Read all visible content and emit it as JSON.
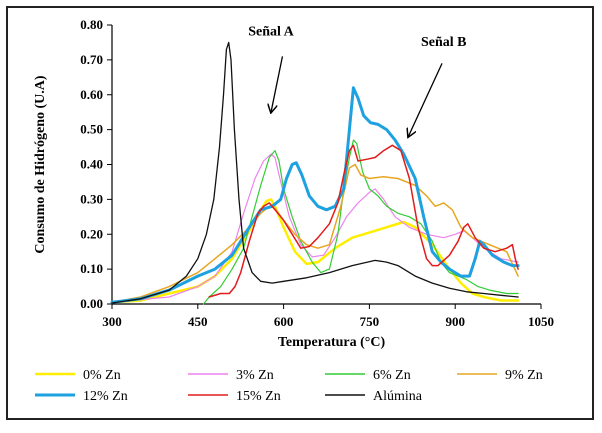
{
  "chart_data": {
    "type": "line",
    "title": "",
    "xlabel": "Temperatura (°C)",
    "ylabel": "Consumo de Hidrógeno (U.A)",
    "xlim": [
      300,
      1050
    ],
    "ylim": [
      0,
      0.8
    ],
    "x_ticks": [
      300,
      450,
      600,
      750,
      900,
      1050
    ],
    "x_tick_labels": [
      "300",
      "450",
      "600",
      "750",
      "900",
      "1050"
    ],
    "y_ticks": [
      0,
      0.1,
      0.2,
      0.3,
      0.4,
      0.5,
      0.6,
      0.7,
      0.8
    ],
    "y_tick_labels": [
      "0.00",
      "0.10",
      "0.20",
      "0.30",
      "0.40",
      "0.50",
      "0.60",
      "0.70",
      "0.80"
    ],
    "annotations": [
      {
        "text": "Señal  A",
        "text_at": [
          578,
          0.77
        ],
        "arrow_from": [
          598,
          0.71
        ],
        "arrow_to": [
          578,
          0.55
        ]
      },
      {
        "text": "Señal B",
        "text_at": [
          880,
          0.74
        ],
        "arrow_from": [
          877,
          0.69
        ],
        "arrow_to": [
          818,
          0.48
        ]
      }
    ],
    "legend_position": "bottom",
    "series": [
      {
        "name": "0% Zn",
        "color": "#ffee00",
        "width": 2.5,
        "points": [
          [
            300,
            0.005
          ],
          [
            350,
            0.01
          ],
          [
            400,
            0.03
          ],
          [
            450,
            0.05
          ],
          [
            480,
            0.08
          ],
          [
            510,
            0.13
          ],
          [
            540,
            0.21
          ],
          [
            560,
            0.27
          ],
          [
            570,
            0.295
          ],
          [
            578,
            0.3
          ],
          [
            585,
            0.28
          ],
          [
            600,
            0.22
          ],
          [
            620,
            0.15
          ],
          [
            640,
            0.115
          ],
          [
            660,
            0.12
          ],
          [
            690,
            0.16
          ],
          [
            720,
            0.19
          ],
          [
            760,
            0.21
          ],
          [
            790,
            0.225
          ],
          [
            810,
            0.235
          ],
          [
            830,
            0.22
          ],
          [
            860,
            0.17
          ],
          [
            890,
            0.1
          ],
          [
            910,
            0.06
          ],
          [
            930,
            0.03
          ],
          [
            950,
            0.02
          ],
          [
            980,
            0.01
          ],
          [
            1010,
            0.01
          ]
        ]
      },
      {
        "name": "3% Zn",
        "color": "#ee82ee",
        "width": 1.2,
        "points": [
          [
            300,
            0.005
          ],
          [
            400,
            0.02
          ],
          [
            450,
            0.05
          ],
          [
            480,
            0.08
          ],
          [
            510,
            0.15
          ],
          [
            530,
            0.26
          ],
          [
            550,
            0.36
          ],
          [
            565,
            0.41
          ],
          [
            578,
            0.43
          ],
          [
            585,
            0.42
          ],
          [
            595,
            0.35
          ],
          [
            610,
            0.25
          ],
          [
            630,
            0.17
          ],
          [
            650,
            0.135
          ],
          [
            670,
            0.14
          ],
          [
            690,
            0.19
          ],
          [
            710,
            0.25
          ],
          [
            730,
            0.29
          ],
          [
            750,
            0.32
          ],
          [
            760,
            0.33
          ],
          [
            775,
            0.3
          ],
          [
            795,
            0.25
          ],
          [
            820,
            0.22
          ],
          [
            850,
            0.2
          ],
          [
            880,
            0.19
          ],
          [
            900,
            0.2
          ],
          [
            915,
            0.21
          ],
          [
            930,
            0.19
          ],
          [
            950,
            0.16
          ],
          [
            980,
            0.13
          ],
          [
            1010,
            0.12
          ]
        ]
      },
      {
        "name": "6% Zn",
        "color": "#33cc33",
        "width": 1.2,
        "points": [
          [
            460,
            0.0
          ],
          [
            470,
            0.02
          ],
          [
            490,
            0.05
          ],
          [
            510,
            0.1
          ],
          [
            530,
            0.16
          ],
          [
            545,
            0.25
          ],
          [
            560,
            0.34
          ],
          [
            575,
            0.42
          ],
          [
            585,
            0.44
          ],
          [
            592,
            0.41
          ],
          [
            600,
            0.33
          ],
          [
            615,
            0.25
          ],
          [
            630,
            0.18
          ],
          [
            650,
            0.12
          ],
          [
            665,
            0.09
          ],
          [
            680,
            0.1
          ],
          [
            695,
            0.2
          ],
          [
            705,
            0.33
          ],
          [
            715,
            0.42
          ],
          [
            722,
            0.47
          ],
          [
            728,
            0.46
          ],
          [
            738,
            0.38
          ],
          [
            750,
            0.33
          ],
          [
            765,
            0.31
          ],
          [
            780,
            0.28
          ],
          [
            800,
            0.26
          ],
          [
            820,
            0.25
          ],
          [
            840,
            0.23
          ],
          [
            860,
            0.18
          ],
          [
            875,
            0.12
          ],
          [
            890,
            0.09
          ],
          [
            905,
            0.08
          ],
          [
            920,
            0.07
          ],
          [
            940,
            0.05
          ],
          [
            960,
            0.04
          ],
          [
            990,
            0.03
          ],
          [
            1010,
            0.03
          ]
        ]
      },
      {
        "name": "9% Zn",
        "color": "#e6a620",
        "width": 1.5,
        "points": [
          [
            300,
            0.005
          ],
          [
            350,
            0.02
          ],
          [
            400,
            0.05
          ],
          [
            450,
            0.09
          ],
          [
            480,
            0.13
          ],
          [
            510,
            0.17
          ],
          [
            540,
            0.22
          ],
          [
            560,
            0.26
          ],
          [
            575,
            0.28
          ],
          [
            585,
            0.275
          ],
          [
            600,
            0.24
          ],
          [
            620,
            0.2
          ],
          [
            640,
            0.17
          ],
          [
            660,
            0.16
          ],
          [
            680,
            0.17
          ],
          [
            700,
            0.28
          ],
          [
            715,
            0.39
          ],
          [
            725,
            0.4
          ],
          [
            735,
            0.37
          ],
          [
            750,
            0.36
          ],
          [
            775,
            0.365
          ],
          [
            800,
            0.36
          ],
          [
            830,
            0.34
          ],
          [
            850,
            0.31
          ],
          [
            865,
            0.28
          ],
          [
            880,
            0.29
          ],
          [
            895,
            0.27
          ],
          [
            910,
            0.22
          ],
          [
            930,
            0.19
          ],
          [
            960,
            0.17
          ],
          [
            990,
            0.15
          ],
          [
            1010,
            0.08
          ]
        ]
      },
      {
        "name": "12% Zn",
        "color": "#1da1e0",
        "width": 3,
        "points": [
          [
            300,
            0.005
          ],
          [
            350,
            0.015
          ],
          [
            400,
            0.04
          ],
          [
            450,
            0.08
          ],
          [
            480,
            0.1
          ],
          [
            510,
            0.14
          ],
          [
            540,
            0.22
          ],
          [
            560,
            0.27
          ],
          [
            580,
            0.28
          ],
          [
            595,
            0.3
          ],
          [
            605,
            0.36
          ],
          [
            615,
            0.4
          ],
          [
            622,
            0.405
          ],
          [
            632,
            0.37
          ],
          [
            645,
            0.31
          ],
          [
            660,
            0.28
          ],
          [
            675,
            0.27
          ],
          [
            690,
            0.28
          ],
          [
            705,
            0.33
          ],
          [
            715,
            0.5
          ],
          [
            722,
            0.62
          ],
          [
            730,
            0.59
          ],
          [
            740,
            0.54
          ],
          [
            752,
            0.52
          ],
          [
            765,
            0.515
          ],
          [
            780,
            0.5
          ],
          [
            795,
            0.47
          ],
          [
            810,
            0.43
          ],
          [
            830,
            0.36
          ],
          [
            845,
            0.25
          ],
          [
            860,
            0.15
          ],
          [
            875,
            0.12
          ],
          [
            890,
            0.1
          ],
          [
            900,
            0.09
          ],
          [
            910,
            0.08
          ],
          [
            925,
            0.08
          ],
          [
            935,
            0.13
          ],
          [
            943,
            0.18
          ],
          [
            950,
            0.17
          ],
          [
            965,
            0.14
          ],
          [
            985,
            0.12
          ],
          [
            1000,
            0.11
          ],
          [
            1010,
            0.11
          ]
        ]
      },
      {
        "name": "15% Zn",
        "color": "#e21b1b",
        "width": 1.5,
        "points": [
          [
            470,
            0.02
          ],
          [
            490,
            0.03
          ],
          [
            505,
            0.03
          ],
          [
            515,
            0.05
          ],
          [
            525,
            0.09
          ],
          [
            540,
            0.18
          ],
          [
            555,
            0.26
          ],
          [
            565,
            0.28
          ],
          [
            575,
            0.29
          ],
          [
            585,
            0.27
          ],
          [
            600,
            0.24
          ],
          [
            615,
            0.2
          ],
          [
            630,
            0.16
          ],
          [
            645,
            0.165
          ],
          [
            660,
            0.19
          ],
          [
            680,
            0.23
          ],
          [
            695,
            0.29
          ],
          [
            705,
            0.37
          ],
          [
            715,
            0.44
          ],
          [
            722,
            0.455
          ],
          [
            730,
            0.41
          ],
          [
            745,
            0.415
          ],
          [
            760,
            0.42
          ],
          [
            775,
            0.44
          ],
          [
            790,
            0.455
          ],
          [
            805,
            0.44
          ],
          [
            820,
            0.36
          ],
          [
            835,
            0.22
          ],
          [
            850,
            0.13
          ],
          [
            860,
            0.11
          ],
          [
            870,
            0.11
          ],
          [
            890,
            0.14
          ],
          [
            905,
            0.18
          ],
          [
            915,
            0.22
          ],
          [
            922,
            0.23
          ],
          [
            935,
            0.19
          ],
          [
            950,
            0.16
          ],
          [
            970,
            0.15
          ],
          [
            990,
            0.16
          ],
          [
            1000,
            0.17
          ],
          [
            1005,
            0.13
          ],
          [
            1010,
            0.1
          ]
        ]
      },
      {
        "name": "Alúmina",
        "color": "#111111",
        "width": 1.3,
        "points": [
          [
            300,
            0.003
          ],
          [
            350,
            0.015
          ],
          [
            400,
            0.04
          ],
          [
            430,
            0.08
          ],
          [
            450,
            0.13
          ],
          [
            465,
            0.2
          ],
          [
            478,
            0.3
          ],
          [
            488,
            0.45
          ],
          [
            495,
            0.6
          ],
          [
            500,
            0.73
          ],
          [
            504,
            0.75
          ],
          [
            508,
            0.7
          ],
          [
            514,
            0.5
          ],
          [
            522,
            0.3
          ],
          [
            530,
            0.16
          ],
          [
            545,
            0.09
          ],
          [
            560,
            0.065
          ],
          [
            580,
            0.06
          ],
          [
            600,
            0.065
          ],
          [
            640,
            0.075
          ],
          [
            680,
            0.09
          ],
          [
            720,
            0.11
          ],
          [
            760,
            0.125
          ],
          [
            780,
            0.12
          ],
          [
            800,
            0.11
          ],
          [
            830,
            0.08
          ],
          [
            860,
            0.06
          ],
          [
            890,
            0.045
          ],
          [
            920,
            0.035
          ],
          [
            950,
            0.03
          ],
          [
            980,
            0.025
          ],
          [
            1010,
            0.02
          ]
        ]
      }
    ]
  }
}
